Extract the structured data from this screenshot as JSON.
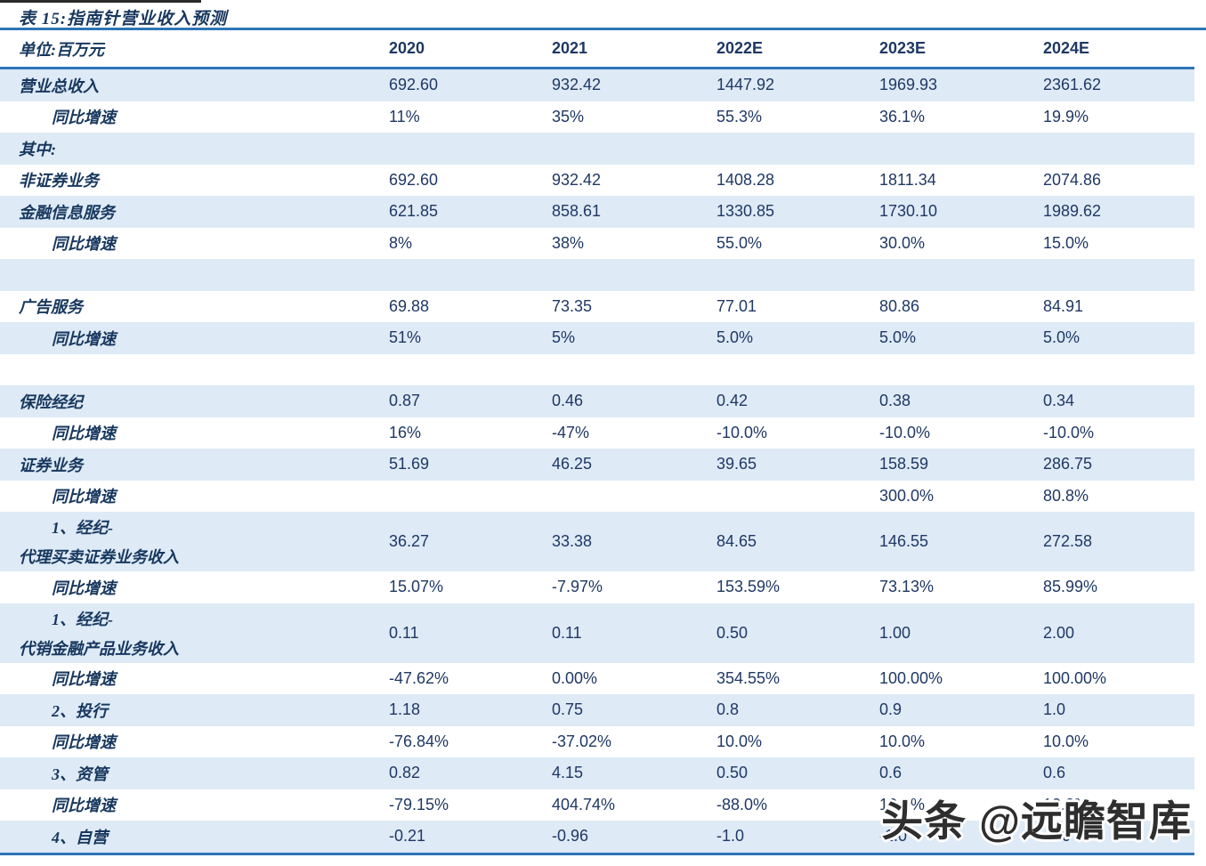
{
  "page": {
    "title": "表 15:指南针营业收入预测",
    "watermark": "头条 @远瞻智库"
  },
  "colors": {
    "rule_blue": "#2E75B6",
    "row_shade_blue": "#DEEAF6",
    "text_navy": "#1F3864"
  },
  "table": {
    "unit_label": "单位:百万元",
    "years": [
      "2020",
      "2021",
      "2022E",
      "2023E",
      "2024E"
    ],
    "rows": [
      {
        "label": "营业总收入",
        "indent": 0,
        "shaded": true,
        "values": [
          "692.60",
          "932.42",
          "1447.92",
          "1969.93",
          "2361.62"
        ]
      },
      {
        "label": "同比增速",
        "indent": 1,
        "shaded": false,
        "values": [
          "11%",
          "35%",
          "55.3%",
          "36.1%",
          "19.9%"
        ]
      },
      {
        "label": "其中:",
        "indent": 0,
        "shaded": true,
        "values": [
          "",
          "",
          "",
          "",
          ""
        ]
      },
      {
        "label": "非证券业务",
        "indent": 0,
        "shaded": false,
        "values": [
          "692.60",
          "932.42",
          "1408.28",
          "1811.34",
          "2074.86"
        ]
      },
      {
        "label": "金融信息服务",
        "indent": 0,
        "shaded": true,
        "values": [
          "621.85",
          "858.61",
          "1330.85",
          "1730.10",
          "1989.62"
        ]
      },
      {
        "label": "同比增速",
        "indent": 1,
        "shaded": false,
        "values": [
          "8%",
          "38%",
          "55.0%",
          "30.0%",
          "15.0%"
        ]
      },
      {
        "label": "",
        "indent": 0,
        "shaded": true,
        "values": [
          "",
          "",
          "",
          "",
          ""
        ]
      },
      {
        "label": "广告服务",
        "indent": 0,
        "shaded": false,
        "values": [
          "69.88",
          "73.35",
          "77.01",
          "80.86",
          "84.91"
        ]
      },
      {
        "label": "同比增速",
        "indent": 1,
        "shaded": true,
        "values": [
          "51%",
          "5%",
          "5.0%",
          "5.0%",
          "5.0%"
        ]
      },
      {
        "label": "",
        "indent": 0,
        "shaded": false,
        "values": [
          "",
          "",
          "",
          "",
          ""
        ]
      },
      {
        "label": "保险经纪",
        "indent": 0,
        "shaded": true,
        "values": [
          "0.87",
          "0.46",
          "0.42",
          "0.38",
          "0.34"
        ]
      },
      {
        "label": "同比增速",
        "indent": 1,
        "shaded": false,
        "values": [
          "16%",
          "-47%",
          "-10.0%",
          "-10.0%",
          "-10.0%"
        ]
      },
      {
        "label": "证券业务",
        "indent": 0,
        "shaded": true,
        "values": [
          "51.69",
          "46.25",
          "39.65",
          "158.59",
          "286.75"
        ]
      },
      {
        "label": "同比增速",
        "indent": 1,
        "shaded": false,
        "values": [
          "",
          "",
          "",
          "300.0%",
          "80.8%"
        ]
      },
      {
        "label": "1、经纪-",
        "label2": "代理买卖证券业务收入",
        "indent": 1,
        "shaded": true,
        "values": [
          "36.27",
          "33.38",
          "84.65",
          "146.55",
          "272.58"
        ]
      },
      {
        "label": "同比增速",
        "indent": 1,
        "shaded": false,
        "values": [
          "15.07%",
          "-7.97%",
          "153.59%",
          "73.13%",
          "85.99%"
        ]
      },
      {
        "label": "1、经纪-",
        "label2": "代销金融产品业务收入",
        "indent": 1,
        "shaded": true,
        "values": [
          "0.11",
          "0.11",
          "0.50",
          "1.00",
          "2.00"
        ]
      },
      {
        "label": "同比增速",
        "indent": 1,
        "shaded": false,
        "values": [
          "-47.62%",
          "0.00%",
          "354.55%",
          "100.00%",
          "100.00%"
        ]
      },
      {
        "label": "2、投行",
        "indent": 1,
        "shaded": true,
        "values": [
          "1.18",
          "0.75",
          "0.8",
          "0.9",
          "1.0"
        ]
      },
      {
        "label": "同比增速",
        "indent": 1,
        "shaded": false,
        "values": [
          "-76.84%",
          "-37.02%",
          "10.0%",
          "10.0%",
          "10.0%"
        ]
      },
      {
        "label": "3、资管",
        "indent": 1,
        "shaded": true,
        "values": [
          "0.82",
          "4.15",
          "0.50",
          "0.6",
          "0.6"
        ]
      },
      {
        "label": "同比增速",
        "indent": 1,
        "shaded": false,
        "values": [
          "-79.15%",
          "404.74%",
          "-88.0%",
          "10.0%",
          "10.0%"
        ]
      },
      {
        "label": "4、自营",
        "indent": 1,
        "shaded": true,
        "values": [
          "-0.21",
          "-0.96",
          "-1.0",
          "-1.0",
          "-1.0"
        ]
      }
    ]
  }
}
